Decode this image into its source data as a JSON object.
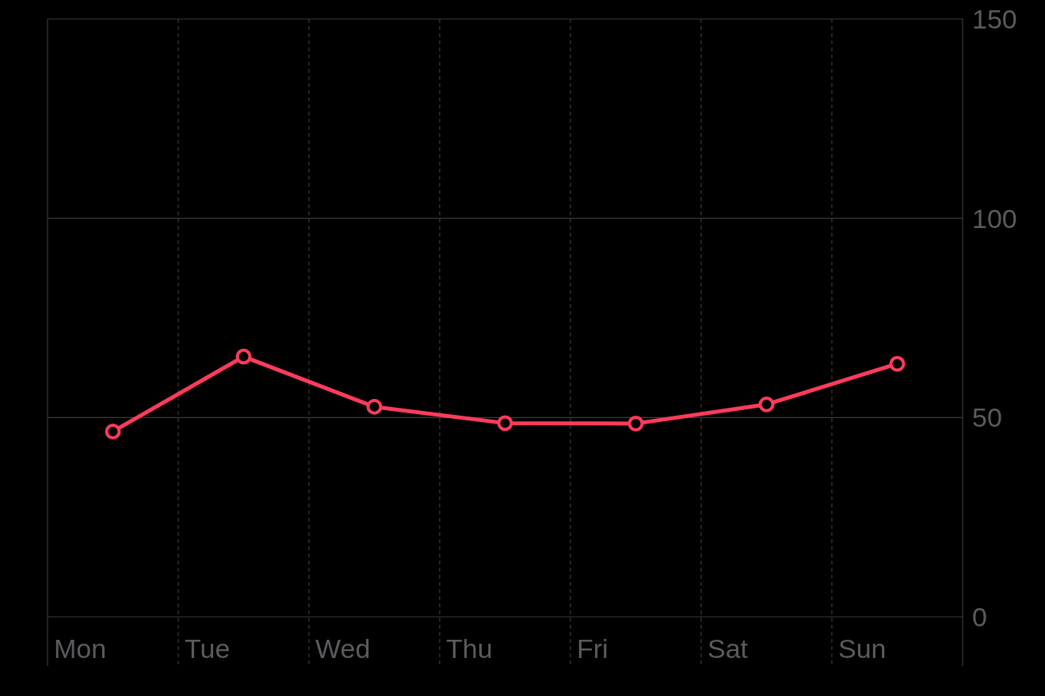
{
  "chart_data": {
    "type": "line",
    "categories": [
      "Mon",
      "Tue",
      "Wed",
      "Thu",
      "Fri",
      "Sat",
      "Sun"
    ],
    "series": [
      {
        "color": "#ff3b5c",
        "values": [
          46.5,
          65.3,
          52.7,
          48.6,
          48.5,
          53.3,
          63.5
        ]
      }
    ],
    "ylim": [
      0,
      150
    ],
    "yticks": [
      0,
      50,
      100,
      150
    ],
    "grid": true,
    "marker": "circle",
    "line_style": "solid"
  }
}
